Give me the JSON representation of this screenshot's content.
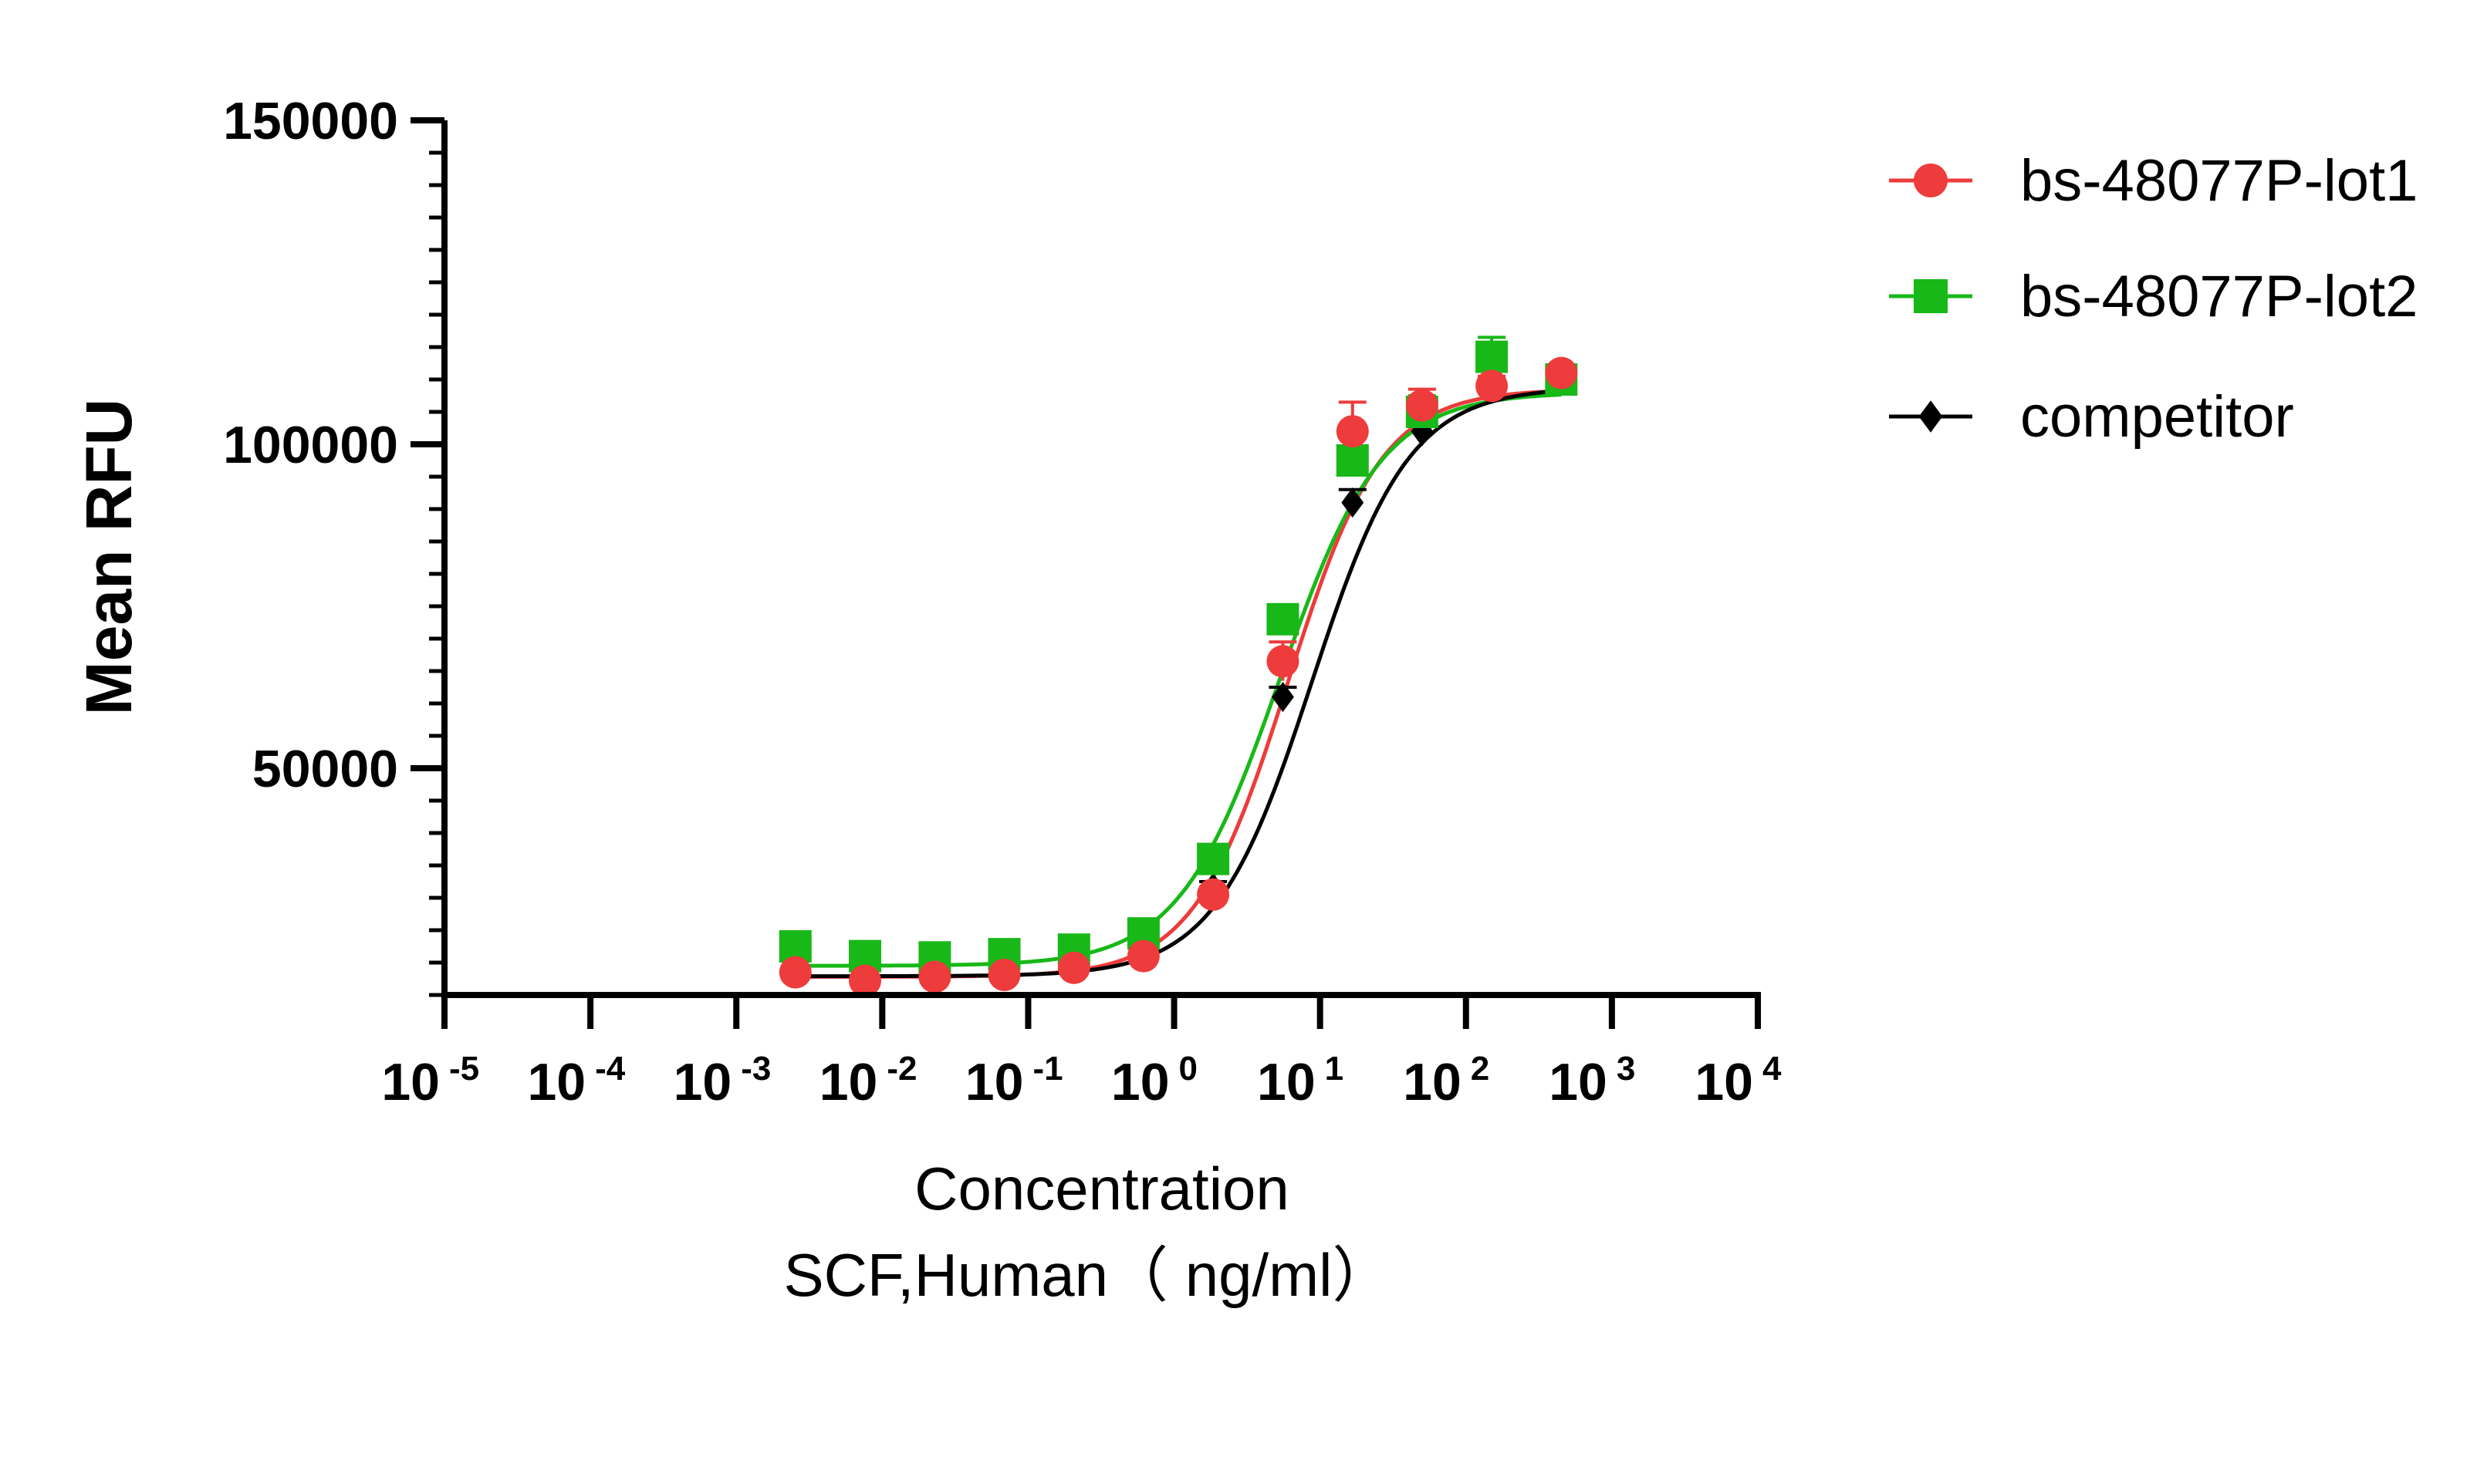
{
  "chart_data": {
    "type": "scatter",
    "title": "",
    "xlabel": "Concentration",
    "xlabel_line2": "SCF,Human（ ng/ml）",
    "ylabel": "Mean RFU",
    "x_scale": "log",
    "xlim": [
      1e-05,
      10000
    ],
    "ylim": [
      15000,
      150000
    ],
    "x_tick_values": [
      1e-05,
      0.0001,
      0.001,
      0.01,
      0.1,
      1,
      10,
      100,
      1000,
      10000
    ],
    "x_ticks": [
      {
        "base": "10",
        "exp": "-5"
      },
      {
        "base": "10",
        "exp": "-4"
      },
      {
        "base": "10",
        "exp": "-3"
      },
      {
        "base": "10",
        "exp": "-2"
      },
      {
        "base": "10",
        "exp": "-1"
      },
      {
        "base": "10",
        "exp": "0"
      },
      {
        "base": "10",
        "exp": "1"
      },
      {
        "base": "10",
        "exp": "2"
      },
      {
        "base": "10",
        "exp": "3"
      },
      {
        "base": "10",
        "exp": "4"
      }
    ],
    "y_tick_values": [
      50000,
      100000,
      150000
    ],
    "y_ticks": [
      "50000",
      "100000",
      "150000"
    ],
    "legend_position": "top-right",
    "grid": false,
    "x": [
      0.00254,
      0.00762,
      0.0229,
      0.0686,
      0.206,
      0.617,
      1.85,
      5.56,
      16.7,
      50,
      150,
      450
    ],
    "series": [
      {
        "name": "bs-48077P-lot1",
        "color": "#ee3b3b",
        "marker": "circle",
        "values": [
          18500,
          17200,
          17800,
          18100,
          19200,
          21000,
          30500,
          66500,
          102000,
          106000,
          109000,
          111000
        ],
        "errors": [
          600,
          500,
          500,
          500,
          700,
          900,
          1200,
          3000,
          4500,
          2500,
          1500,
          800
        ],
        "fit": {
          "bottom": 17800,
          "top": 108500,
          "ec50": 6.0,
          "hill": 1.35
        }
      },
      {
        "name": "bs-48077P-lot2",
        "color": "#18b818",
        "marker": "square",
        "values": [
          22500,
          21000,
          20800,
          21300,
          22000,
          24500,
          36000,
          73000,
          97500,
          105000,
          113500,
          110000
        ],
        "errors": [
          600,
          500,
          500,
          500,
          600,
          700,
          1000,
          1500,
          1500,
          2500,
          3000,
          1000
        ],
        "fit": {
          "bottom": 19500,
          "top": 108000,
          "ec50": 5.3,
          "hill": 1.25
        }
      },
      {
        "name": "competitor",
        "color": "#000000",
        "marker": "diamond",
        "values": [
          18300,
          17500,
          17700,
          18000,
          19000,
          21500,
          31500,
          61000,
          91000,
          102000,
          108500,
          110000
        ],
        "errors": [
          500,
          500,
          500,
          500,
          500,
          700,
          1000,
          1500,
          2000,
          1500,
          1500,
          800
        ],
        "fit": {
          "bottom": 17900,
          "top": 108800,
          "ec50": 8.8,
          "hill": 1.3
        }
      }
    ]
  }
}
